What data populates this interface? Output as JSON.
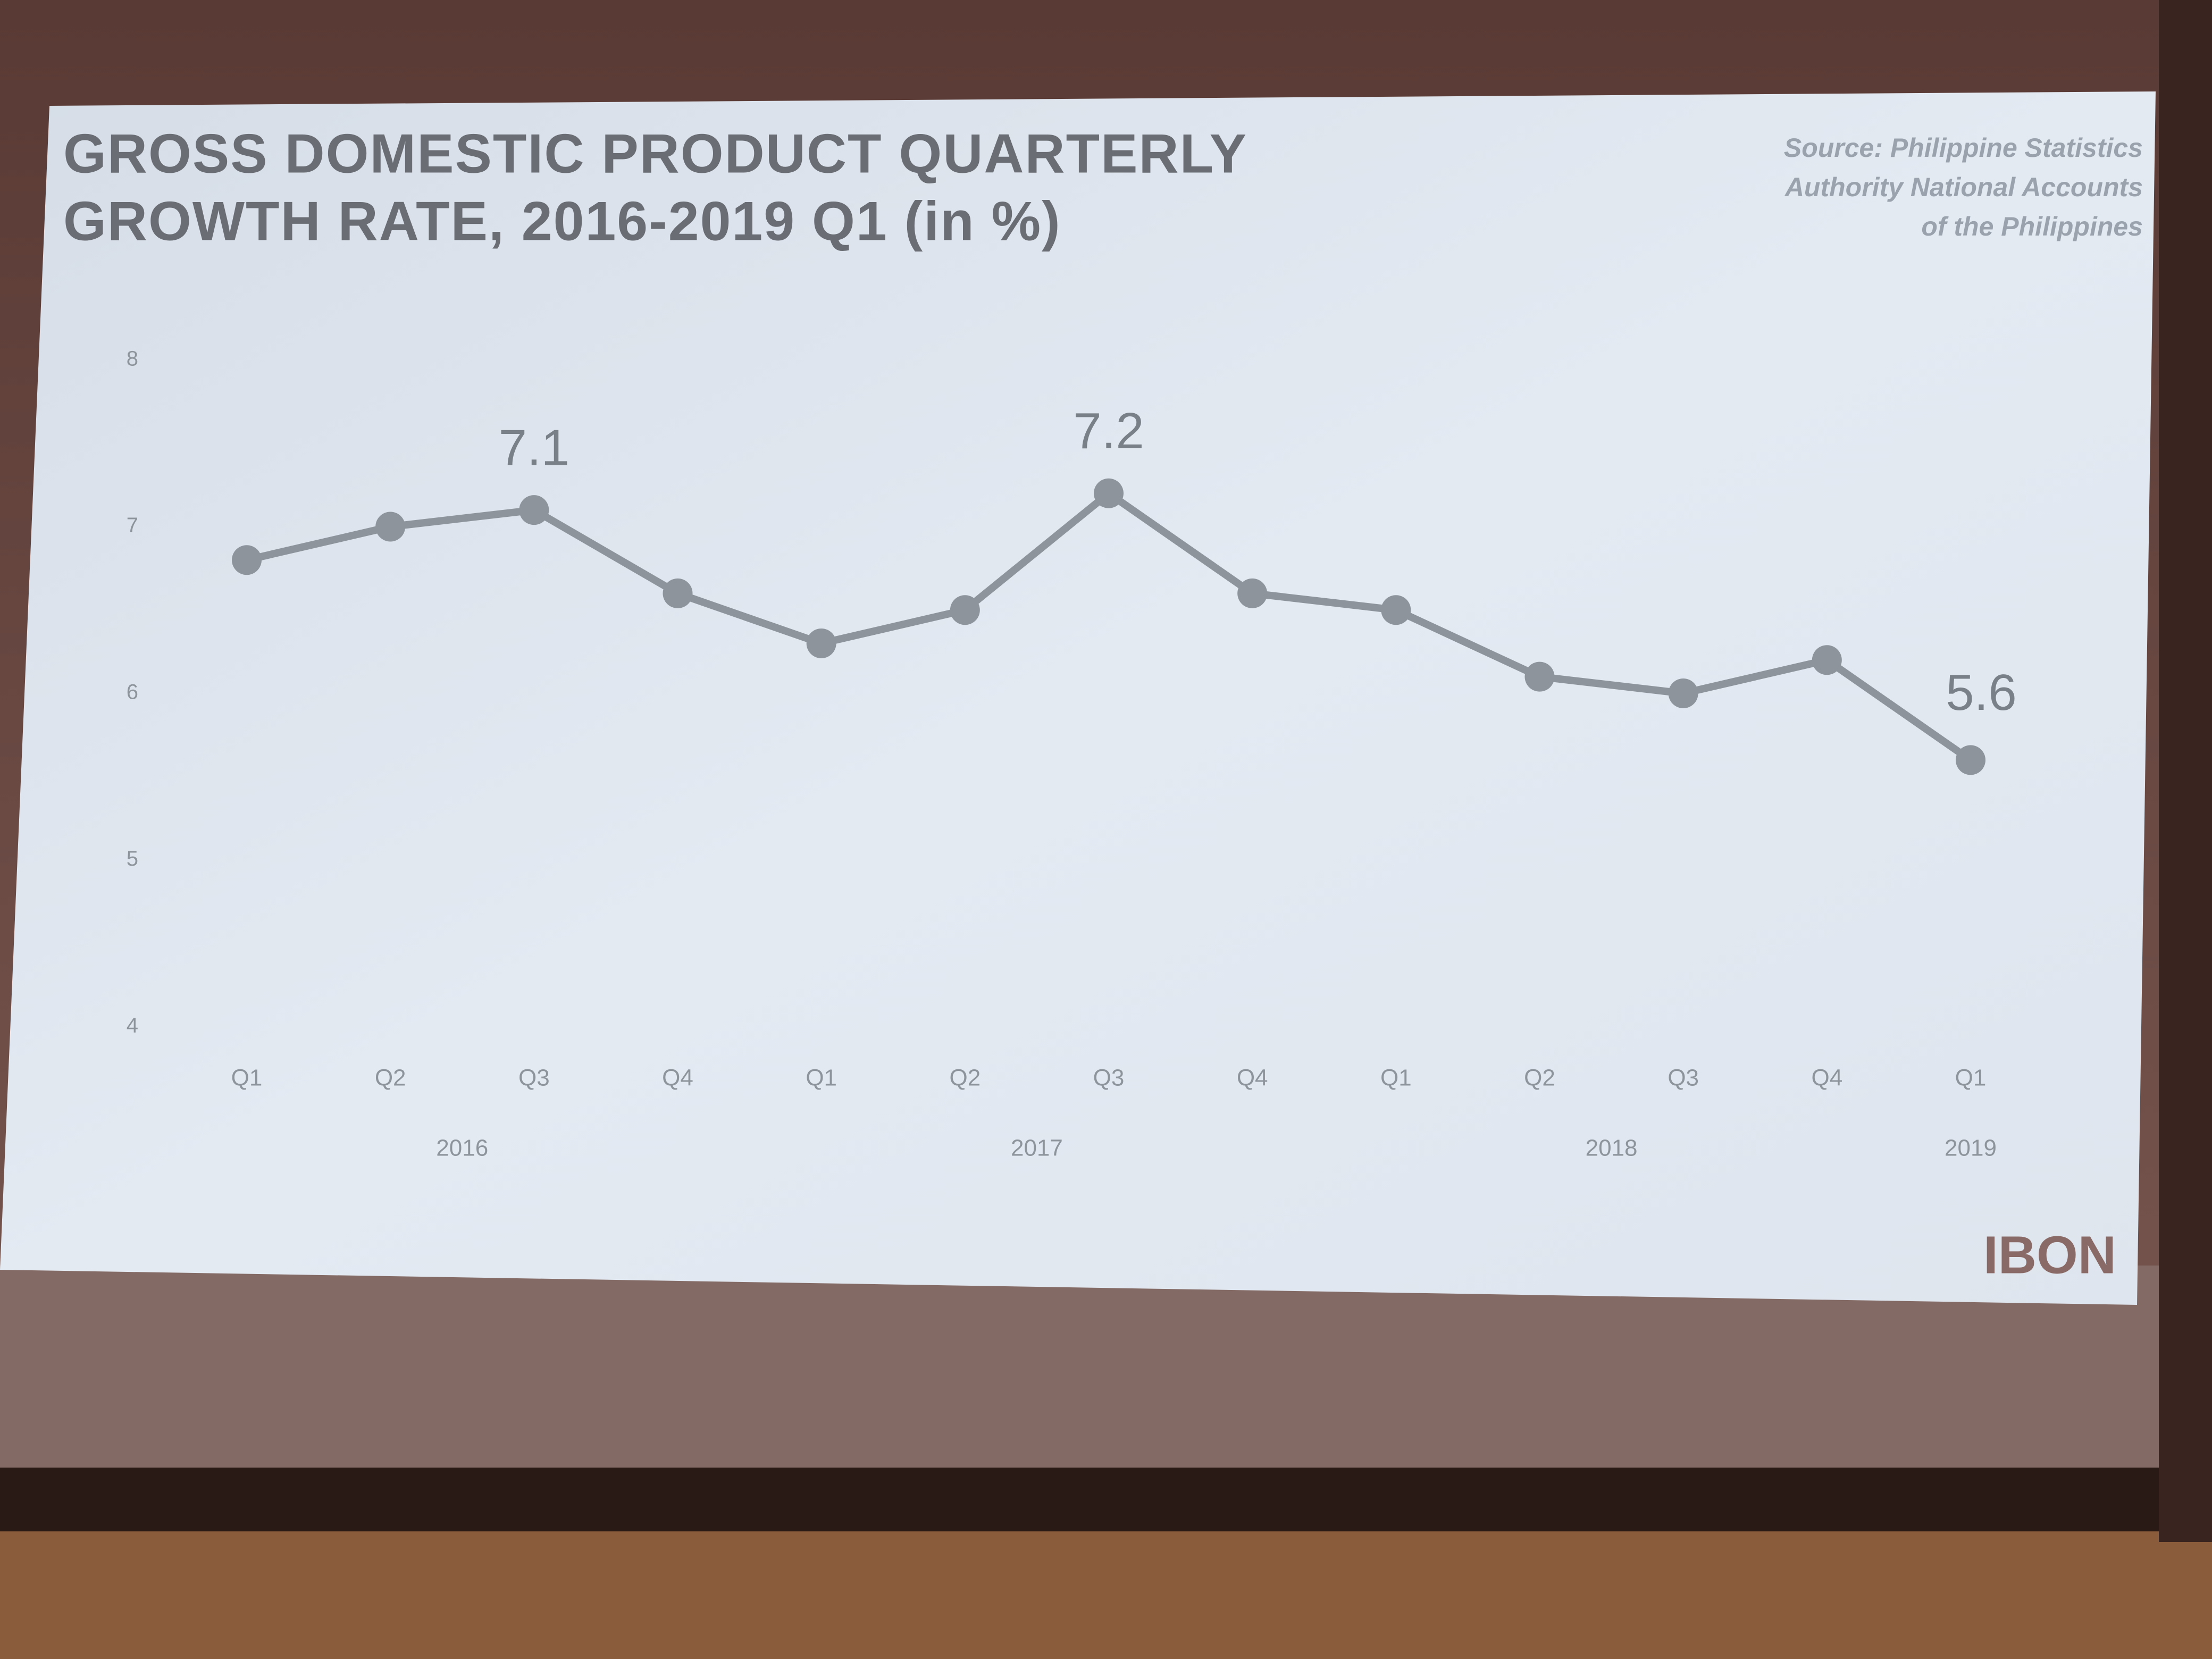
{
  "chart_data": {
    "type": "line",
    "title": [
      "GROSS DOMESTIC PRODUCT QUARTERLY",
      "GROWTH RATE, 2016-2019 Q1 (in %)"
    ],
    "source": [
      "Source: Philippine Statistics",
      "Authority National Accounts",
      "of the Philippines"
    ],
    "logo": "IBON",
    "categories": [
      "Q1",
      "Q2",
      "Q3",
      "Q4",
      "Q1",
      "Q2",
      "Q3",
      "Q4",
      "Q1",
      "Q2",
      "Q3",
      "Q4",
      "Q1"
    ],
    "years": [
      "2016",
      "2017",
      "2018",
      "2019"
    ],
    "values": [
      6.8,
      7.0,
      7.1,
      6.6,
      6.3,
      6.5,
      7.2,
      6.6,
      6.5,
      6.1,
      6.0,
      6.2,
      5.6
    ],
    "value_labels": [
      null,
      null,
      "7.1",
      null,
      null,
      null,
      "7.2",
      null,
      null,
      null,
      null,
      null,
      "5.6"
    ],
    "color": "#8d949b",
    "ylim": [
      4,
      8
    ],
    "yticks": [
      4,
      5,
      6,
      7,
      8
    ],
    "grid": false
  }
}
